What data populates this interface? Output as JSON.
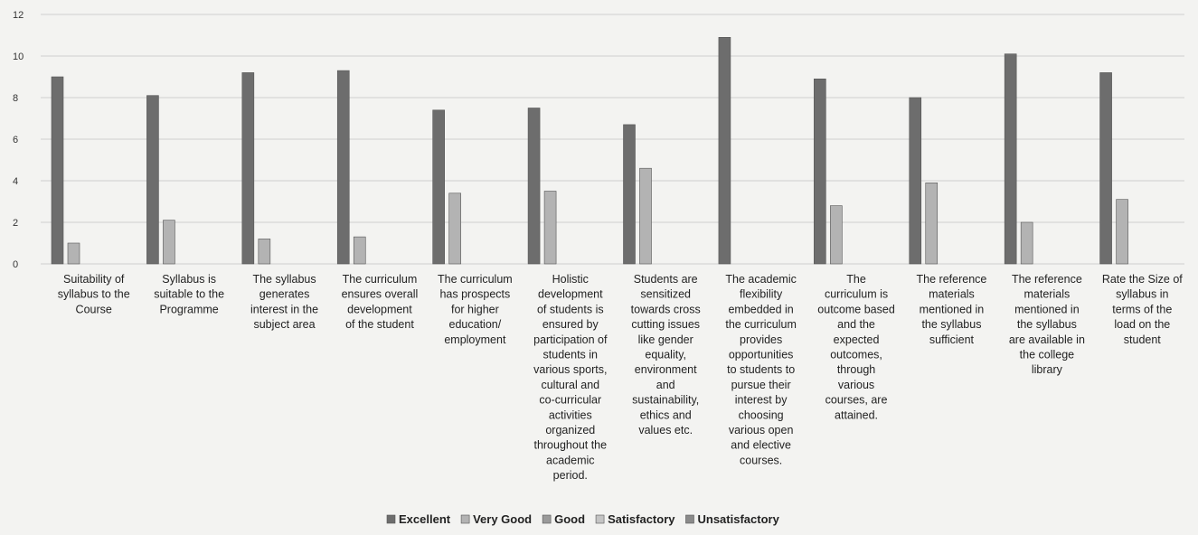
{
  "chart_data": {
    "type": "bar",
    "title": "",
    "xlabel": "",
    "ylabel": "",
    "ylim": [
      0,
      12
    ],
    "yticks": [
      0,
      2,
      4,
      6,
      8,
      10,
      12
    ],
    "grid": true,
    "legend_position": "bottom",
    "categories": [
      "Suitability of syllabus to the Course",
      "Syllabus is suitable to the Programme",
      "The syllabus generates interest in the subject area",
      "The curriculum ensures overall development of the student",
      "The curriculum has prospects for higher education/ employment",
      "Holistic development of students is ensured by participation of students in various sports, cultural and co-curricular activities organized throughout the academic period.",
      "Students are sensitized towards cross cutting issues like gender equality, environment and sustainability, ethics and values etc.",
      "The academic flexibility embedded in the curriculum provides opportunities to students to pursue their interest by choosing various open and elective courses.",
      "The curriculum is outcome based and the expected outcomes, through various courses, are attained.",
      "The reference materials mentioned in the syllabus sufficient",
      "The reference materials mentioned in the syllabus are available in the college library",
      "Rate the Size of syllabus in terms of the load on the student"
    ],
    "category_lines": [
      [
        "Suitability of",
        "syllabus to the",
        "Course"
      ],
      [
        "Syllabus is",
        "suitable to the",
        "Programme"
      ],
      [
        "The syllabus",
        "generates",
        "interest in the",
        "subject area"
      ],
      [
        "The curriculum",
        "ensures overall",
        "development",
        "of the student"
      ],
      [
        "The curriculum",
        "has prospects",
        "for higher",
        "education/",
        "employment"
      ],
      [
        "Holistic",
        "development",
        "of students  is",
        "ensured by",
        "participation of",
        "students  in",
        "various  sports,",
        "cultural and",
        "co-curricular",
        "activities",
        "organized",
        "throughout the",
        "academic",
        "period."
      ],
      [
        "Students are",
        "sensitized",
        "towards cross",
        "cutting issues",
        "like  gender",
        "equality,",
        "environment",
        "and",
        "sustainability,",
        "ethics and",
        "values etc."
      ],
      [
        "The  academic",
        "flexibility",
        "embedded  in",
        "the curriculum",
        "provides",
        "opportunities",
        "to students  to",
        "pursue their",
        "interest  by",
        "choosing",
        "various open",
        "and elective",
        "courses."
      ],
      [
        "The",
        "curriculum is",
        "outcome based",
        "and the",
        "expected",
        "outcomes,",
        "through",
        "various",
        "courses, are",
        "attained."
      ],
      [
        "The reference",
        "materials",
        "mentioned in",
        "the syllabus",
        "sufficient"
      ],
      [
        "The reference",
        "materials",
        "mentioned in",
        "the syllabus",
        "are available in",
        "the college",
        "library"
      ],
      [
        "Rate the Size of",
        "syllabus in",
        "terms of the",
        "load on the",
        "student"
      ]
    ],
    "series": [
      {
        "name": "Excellent",
        "color": "#6d6d6d",
        "values": [
          9,
          8.1,
          9.2,
          9.3,
          7.4,
          7.5,
          6.7,
          10.9,
          8.9,
          8,
          10.1,
          9.2
        ]
      },
      {
        "name": "Very Good",
        "color": "#b3b3b3",
        "values": [
          1,
          2.1,
          1.2,
          1.3,
          3.4,
          3.5,
          4.6,
          0,
          2.8,
          3.9,
          2,
          3.1
        ]
      },
      {
        "name": "Good",
        "color": "#9a9a9a",
        "values": [
          0,
          0,
          0,
          0,
          0,
          0,
          0,
          0,
          0,
          0,
          0,
          0
        ]
      },
      {
        "name": "Satisfactory",
        "color": "#c4c4c4",
        "values": [
          0,
          0,
          0,
          0,
          0,
          0,
          0,
          0,
          0,
          0,
          0,
          0
        ]
      },
      {
        "name": "Unsatisfactory",
        "color": "#8a8a8a",
        "values": [
          0,
          0,
          0,
          0,
          0,
          0,
          0,
          0,
          0,
          0,
          0,
          0
        ]
      }
    ]
  }
}
